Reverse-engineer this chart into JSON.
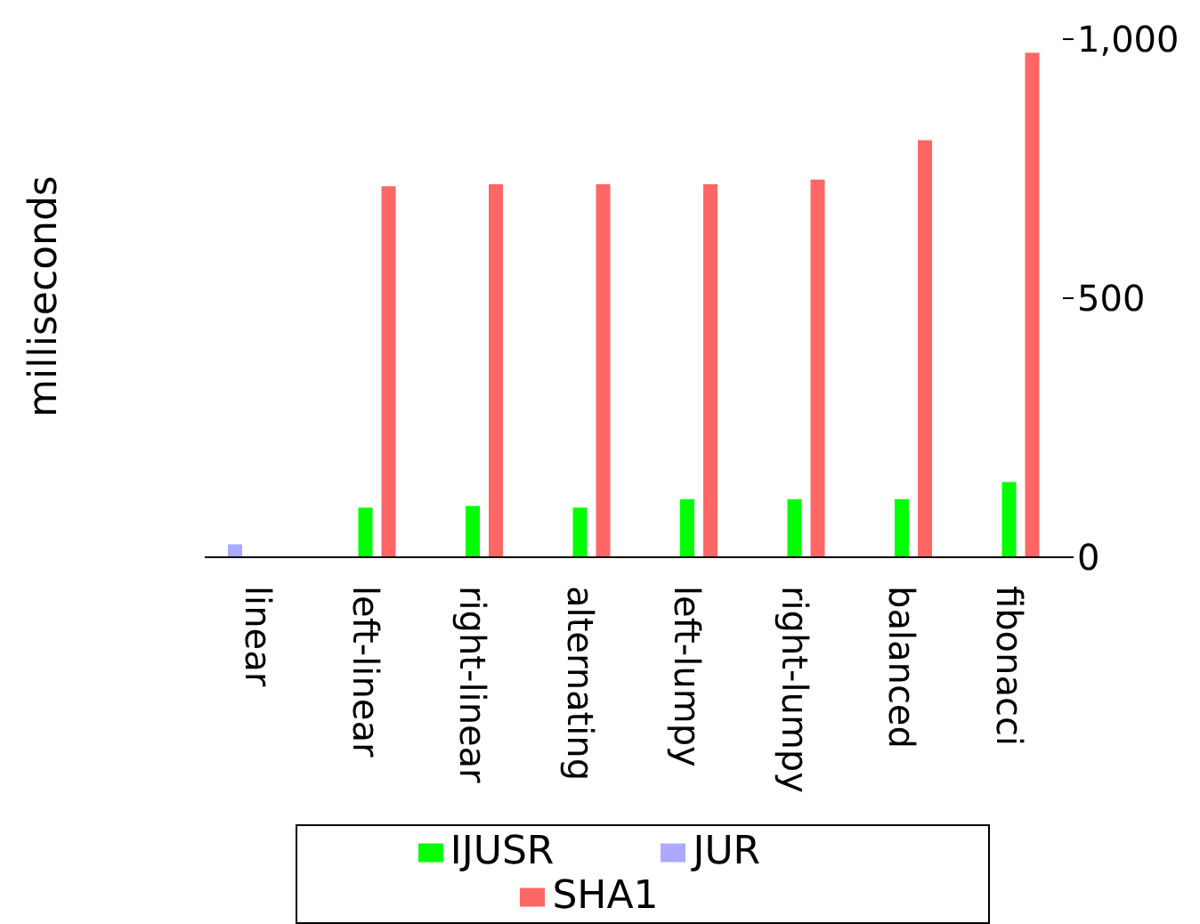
{
  "chart_data": {
    "type": "bar",
    "ylabel": "milliseconds",
    "categories": [
      "linear",
      "left-linear",
      "right-linear",
      "alternating",
      "left-lumpy",
      "right-lumpy",
      "balanced",
      "fibonacci"
    ],
    "series": [
      {
        "name": "JUR",
        "color": "#aaaaff",
        "values": [
          25,
          null,
          null,
          null,
          null,
          null,
          null,
          null
        ]
      },
      {
        "name": "IJUSR",
        "color": "#00ff00",
        "values": [
          null,
          96,
          99,
          96,
          112,
          112,
          112,
          145
        ]
      },
      {
        "name": "SHA1",
        "color": "#ff6666",
        "values": [
          null,
          716,
          720,
          720,
          720,
          729,
          805,
          974
        ]
      }
    ],
    "ylim": [
      0,
      1000
    ],
    "yticks": [
      0,
      500,
      {
        "value": 1000,
        "label": "1,000"
      }
    ],
    "legend": "bottom"
  }
}
